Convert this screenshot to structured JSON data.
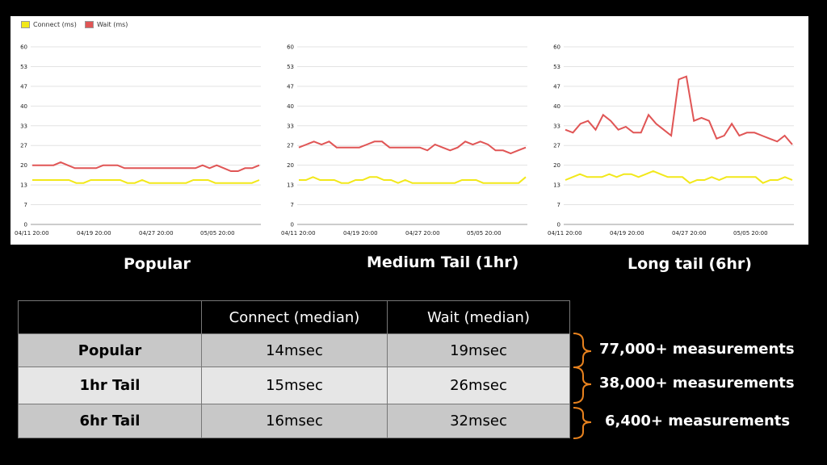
{
  "legend": {
    "connect_label": "Connect (ms)",
    "wait_label": "Wait (ms)",
    "connect_color": "#f2e81a",
    "wait_color": "#e05555"
  },
  "chart_data": [
    {
      "type": "line",
      "caption": "Popular",
      "yticks": [
        "0",
        "7",
        "13",
        "20",
        "27",
        "33",
        "40",
        "47",
        "53",
        "60"
      ],
      "ylim": [
        0,
        60
      ],
      "xticks": [
        "04/11 20:00",
        "04/19 20:00",
        "04/27 20:00",
        "05/05 20:00"
      ],
      "series": [
        {
          "name": "Connect (ms)",
          "color": "#f2e81a",
          "values": [
            15,
            15,
            15,
            15,
            15,
            15,
            14,
            14,
            15,
            15,
            15,
            15,
            15,
            14,
            14,
            15,
            14,
            14,
            14,
            14,
            14,
            14,
            15,
            15,
            15,
            14,
            14,
            14,
            14,
            14,
            14,
            15
          ]
        },
        {
          "name": "Wait (ms)",
          "color": "#e05555",
          "values": [
            20,
            20,
            20,
            20,
            21,
            20,
            19,
            19,
            19,
            19,
            20,
            20,
            20,
            19,
            19,
            19,
            19,
            19,
            19,
            19,
            19,
            19,
            19,
            19,
            20,
            19,
            20,
            19,
            18,
            18,
            19,
            19,
            20
          ]
        }
      ]
    },
    {
      "type": "line",
      "caption": "Medium Tail (1hr)",
      "yticks": [
        "0",
        "7",
        "13",
        "20",
        "27",
        "33",
        "40",
        "47",
        "53",
        "60"
      ],
      "ylim": [
        0,
        60
      ],
      "xticks": [
        "04/11 20:00",
        "04/19 20:00",
        "04/27 20:00",
        "05/05 20:00"
      ],
      "series": [
        {
          "name": "Connect (ms)",
          "color": "#f2e81a",
          "values": [
            15,
            15,
            16,
            15,
            15,
            15,
            14,
            14,
            15,
            15,
            16,
            16,
            15,
            15,
            14,
            15,
            14,
            14,
            14,
            14,
            14,
            14,
            14,
            15,
            15,
            15,
            14,
            14,
            14,
            14,
            14,
            14,
            16
          ]
        },
        {
          "name": "Wait (ms)",
          "color": "#e05555",
          "values": [
            26,
            27,
            28,
            27,
            28,
            26,
            26,
            26,
            26,
            27,
            28,
            28,
            26,
            26,
            26,
            26,
            26,
            25,
            27,
            26,
            25,
            26,
            28,
            27,
            28,
            27,
            25,
            25,
            24,
            25,
            26
          ]
        }
      ]
    },
    {
      "type": "line",
      "caption": "Long tail  (6hr)",
      "yticks": [
        "0",
        "7",
        "13",
        "20",
        "27",
        "33",
        "40",
        "47",
        "53",
        "60"
      ],
      "ylim": [
        0,
        60
      ],
      "xticks": [
        "04/11 20:00",
        "04/19 20:00",
        "04/27 20:00",
        "05/05 20:00"
      ],
      "series": [
        {
          "name": "Connect (ms)",
          "color": "#f2e81a",
          "values": [
            15,
            16,
            17,
            16,
            16,
            16,
            17,
            16,
            17,
            17,
            16,
            17,
            18,
            17,
            16,
            16,
            16,
            14,
            15,
            15,
            16,
            15,
            16,
            16,
            16,
            16,
            16,
            14,
            15,
            15,
            16,
            15
          ]
        },
        {
          "name": "Wait (ms)",
          "color": "#e05555",
          "values": [
            32,
            31,
            34,
            35,
            32,
            37,
            35,
            32,
            33,
            31,
            31,
            37,
            34,
            32,
            30,
            49,
            50,
            35,
            36,
            35,
            29,
            30,
            34,
            30,
            31,
            31,
            30,
            29,
            28,
            30,
            27
          ]
        }
      ]
    }
  ],
  "table": {
    "headers": [
      "",
      "Connect (median)",
      "Wait (median)"
    ],
    "rows": [
      {
        "label": "Popular",
        "connect": "14msec",
        "wait": "19msec"
      },
      {
        "label": "1hr Tail",
        "connect": "15msec",
        "wait": "26msec"
      },
      {
        "label": "6hr Tail",
        "connect": "16msec",
        "wait": "32msec"
      }
    ]
  },
  "measurements": [
    "77,000+ measurements",
    "38,000+ measurements",
    "6,400+ measurements"
  ],
  "brace_color": "#e8821e"
}
